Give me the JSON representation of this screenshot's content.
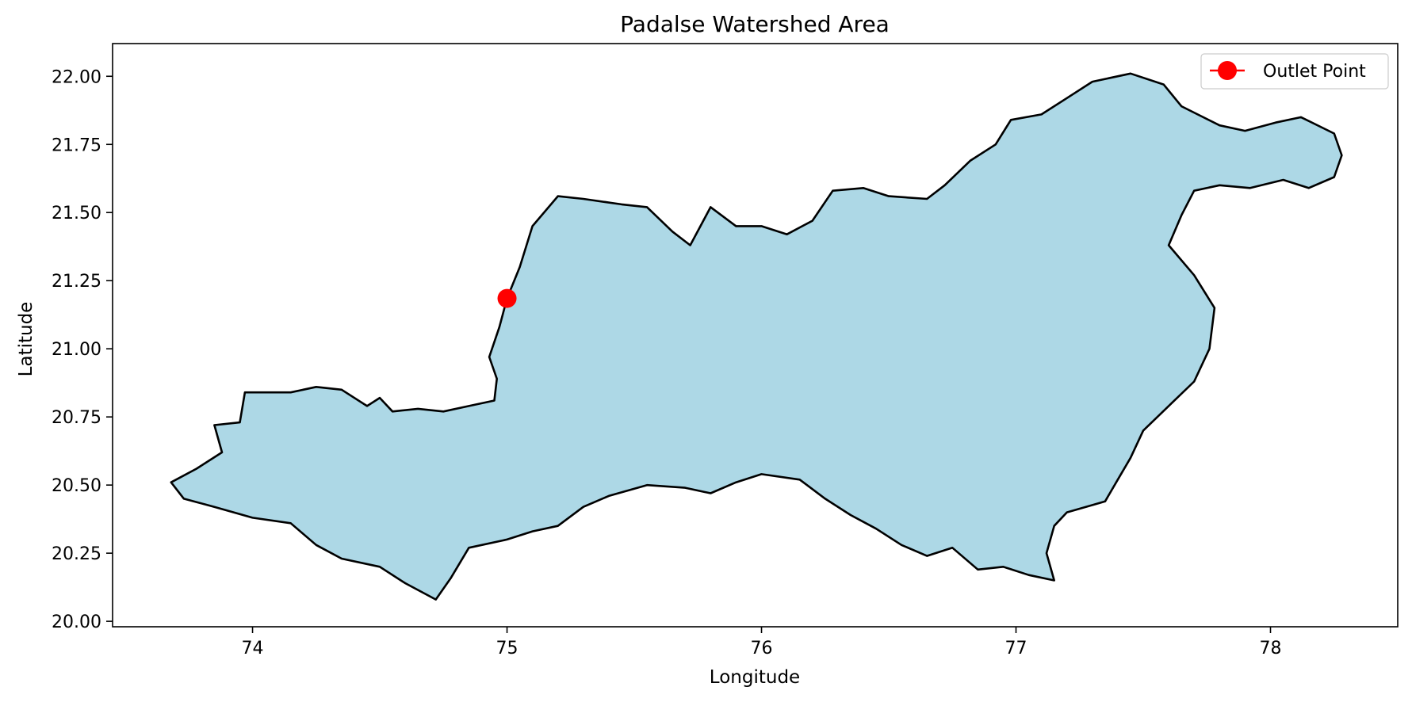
{
  "title": "Padalse Watershed Area",
  "xlabel": "Longitude",
  "ylabel": "Latitude",
  "colors": {
    "watershed_fill": "#add8e6",
    "watershed_edge": "#000000",
    "outlet": "#ff0000"
  },
  "chart_data": {
    "type": "map",
    "title": "Padalse Watershed Area",
    "xlabel": "Longitude",
    "ylabel": "Latitude",
    "xlim": [
      73.45,
      78.5
    ],
    "ylim": [
      19.98,
      22.12
    ],
    "xticks": [
      74,
      75,
      76,
      77,
      78
    ],
    "xtick_labels": [
      "74",
      "75",
      "76",
      "77",
      "78"
    ],
    "yticks": [
      20.0,
      20.25,
      20.5,
      20.75,
      21.0,
      21.25,
      21.5,
      21.75,
      22.0
    ],
    "ytick_labels": [
      "20.00",
      "20.25",
      "20.50",
      "20.75",
      "21.00",
      "21.25",
      "21.50",
      "21.75",
      "22.00"
    ],
    "legend": {
      "position": "upper right",
      "entries": [
        "Outlet Point"
      ]
    },
    "outlet_point": {
      "lon": 75.0,
      "lat": 21.185,
      "label": "Outlet Point"
    },
    "watershed_boundary": [
      [
        73.68,
        20.51
      ],
      [
        73.78,
        20.56
      ],
      [
        73.88,
        20.62
      ],
      [
        73.85,
        20.72
      ],
      [
        73.95,
        20.73
      ],
      [
        73.97,
        20.84
      ],
      [
        74.15,
        20.84
      ],
      [
        74.25,
        20.86
      ],
      [
        74.35,
        20.85
      ],
      [
        74.45,
        20.79
      ],
      [
        74.5,
        20.82
      ],
      [
        74.55,
        20.77
      ],
      [
        74.65,
        20.78
      ],
      [
        74.75,
        20.77
      ],
      [
        74.85,
        20.79
      ],
      [
        74.95,
        20.81
      ],
      [
        74.96,
        20.89
      ],
      [
        74.93,
        20.97
      ],
      [
        74.97,
        21.08
      ],
      [
        75.0,
        21.185
      ],
      [
        75.05,
        21.3
      ],
      [
        75.1,
        21.45
      ],
      [
        75.2,
        21.56
      ],
      [
        75.3,
        21.55
      ],
      [
        75.45,
        21.53
      ],
      [
        75.55,
        21.52
      ],
      [
        75.65,
        21.43
      ],
      [
        75.72,
        21.38
      ],
      [
        75.8,
        21.52
      ],
      [
        75.9,
        21.45
      ],
      [
        76.0,
        21.45
      ],
      [
        76.1,
        21.42
      ],
      [
        76.2,
        21.47
      ],
      [
        76.28,
        21.58
      ],
      [
        76.4,
        21.59
      ],
      [
        76.5,
        21.56
      ],
      [
        76.65,
        21.55
      ],
      [
        76.72,
        21.6
      ],
      [
        76.82,
        21.69
      ],
      [
        76.92,
        21.75
      ],
      [
        76.98,
        21.84
      ],
      [
        77.1,
        21.86
      ],
      [
        77.2,
        21.92
      ],
      [
        77.3,
        21.98
      ],
      [
        77.45,
        22.01
      ],
      [
        77.58,
        21.97
      ],
      [
        77.65,
        21.89
      ],
      [
        77.8,
        21.82
      ],
      [
        77.9,
        21.8
      ],
      [
        78.02,
        21.83
      ],
      [
        78.12,
        21.85
      ],
      [
        78.25,
        21.79
      ],
      [
        78.28,
        21.71
      ],
      [
        78.25,
        21.63
      ],
      [
        78.15,
        21.59
      ],
      [
        78.05,
        21.62
      ],
      [
        77.92,
        21.59
      ],
      [
        77.8,
        21.6
      ],
      [
        77.7,
        21.58
      ],
      [
        77.65,
        21.49
      ],
      [
        77.6,
        21.38
      ],
      [
        77.7,
        21.27
      ],
      [
        77.78,
        21.15
      ],
      [
        77.76,
        21.0
      ],
      [
        77.7,
        20.88
      ],
      [
        77.6,
        20.79
      ],
      [
        77.5,
        20.7
      ],
      [
        77.45,
        20.6
      ],
      [
        77.4,
        20.52
      ],
      [
        77.35,
        20.44
      ],
      [
        77.2,
        20.4
      ],
      [
        77.15,
        20.35
      ],
      [
        77.12,
        20.25
      ],
      [
        77.15,
        20.15
      ],
      [
        77.05,
        20.17
      ],
      [
        76.95,
        20.2
      ],
      [
        76.85,
        20.19
      ],
      [
        76.75,
        20.27
      ],
      [
        76.65,
        20.24
      ],
      [
        76.55,
        20.28
      ],
      [
        76.45,
        20.34
      ],
      [
        76.35,
        20.39
      ],
      [
        76.25,
        20.45
      ],
      [
        76.15,
        20.52
      ],
      [
        76.0,
        20.54
      ],
      [
        75.9,
        20.51
      ],
      [
        75.8,
        20.47
      ],
      [
        75.7,
        20.49
      ],
      [
        75.55,
        20.5
      ],
      [
        75.4,
        20.46
      ],
      [
        75.3,
        20.42
      ],
      [
        75.2,
        20.35
      ],
      [
        75.1,
        20.33
      ],
      [
        75.0,
        20.3
      ],
      [
        74.85,
        20.27
      ],
      [
        74.78,
        20.16
      ],
      [
        74.72,
        20.08
      ],
      [
        74.6,
        20.14
      ],
      [
        74.5,
        20.2
      ],
      [
        74.35,
        20.23
      ],
      [
        74.25,
        20.28
      ],
      [
        74.15,
        20.36
      ],
      [
        74.0,
        20.38
      ],
      [
        73.85,
        20.42
      ],
      [
        73.73,
        20.45
      ]
    ]
  }
}
